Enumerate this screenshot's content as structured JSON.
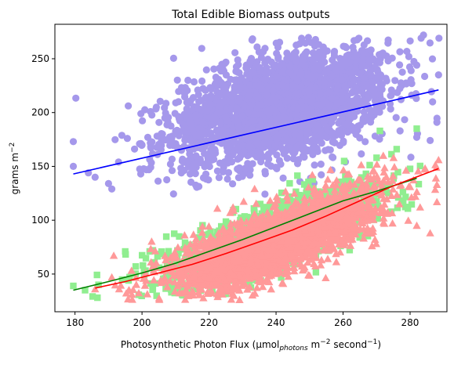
{
  "chart_data": {
    "type": "scatter",
    "title": "Total Edible Biomass outputs",
    "xlabel": {
      "main": "Photosynthetic Photon Flux (μmol",
      "sub": "photons",
      "mid": " m",
      "sup1": "−2",
      "end": " second",
      "sup2": "−1",
      "close": ")"
    },
    "ylabel": {
      "main": "grams m",
      "sup": "−2"
    },
    "xlim": [
      174,
      291
    ],
    "ylim": [
      15,
      282
    ],
    "xticks": [
      180,
      200,
      220,
      240,
      260,
      280
    ],
    "yticks": [
      50,
      100,
      150,
      200,
      250
    ],
    "grid": false,
    "legend": "none",
    "series": [
      {
        "marker": "circle",
        "color": "#a598eb",
        "cloud": {
          "x_range": [
            179,
            289
          ],
          "mean_x": 242,
          "sd_x": 16,
          "mean_y": 205,
          "sd_y": 24,
          "slope": 0.72,
          "n": 2600,
          "y_min": 105,
          "y_max": 272
        },
        "outliers": [
          [
            179.5,
            150
          ],
          [
            179.5,
            173
          ],
          [
            184,
            144
          ],
          [
            186,
            140
          ],
          [
            190,
            134
          ],
          [
            193,
            154
          ],
          [
            191,
            129
          ],
          [
            288.5,
            235
          ],
          [
            288,
            191
          ],
          [
            286,
            174
          ],
          [
            284,
            272
          ],
          [
            282,
            244
          ],
          [
            282,
            177
          ],
          [
            277,
            183
          ]
        ],
        "fit": {
          "color": "#0000ff",
          "points": [
            [
              179.5,
              143
            ],
            [
              288.5,
              221
            ]
          ]
        }
      },
      {
        "marker": "square",
        "color": "#90ee90",
        "cloud": {
          "x_range": [
            179,
            283
          ],
          "mean_x": 238,
          "sd_x": 15,
          "mean_y_formula": "quadratic",
          "sd_y": 14,
          "n": 1800,
          "y_min": 27,
          "y_max": 185
        },
        "outliers": [
          [
            179.5,
            39
          ],
          [
            183,
            35
          ],
          [
            187,
            40
          ],
          [
            195,
            71
          ],
          [
            270,
            158
          ],
          [
            276,
            166
          ],
          [
            282,
            185
          ],
          [
            271,
            183
          ]
        ],
        "fit": {
          "color": "#008000",
          "points": [
            [
              179.5,
              35
            ],
            [
              190,
              43
            ],
            [
              200,
              51
            ],
            [
              210,
              60
            ],
            [
              220,
              71
            ],
            [
              230,
              82
            ],
            [
              240,
              94
            ],
            [
              250,
              106
            ],
            [
              260,
              118
            ],
            [
              270,
              127
            ],
            [
              282,
              139
            ]
          ]
        }
      },
      {
        "marker": "triangle",
        "color": "#ff9999",
        "cloud": {
          "x_range": [
            186,
            289
          ],
          "mean_x": 240,
          "sd_x": 15,
          "mean_y_formula": "quadratic",
          "sd_y": 15,
          "n": 2600,
          "y_min": 25,
          "y_max": 160
        },
        "outliers": [
          [
            186,
            36
          ],
          [
            191,
            47
          ],
          [
            197,
            31
          ],
          [
            288.5,
            156
          ],
          [
            288,
            133
          ],
          [
            288,
            117
          ],
          [
            286,
            88
          ],
          [
            283,
            112
          ],
          [
            282,
            95
          ],
          [
            280,
            131
          ],
          [
            272,
            160
          ]
        ],
        "fit": {
          "color": "#ff0000",
          "points": [
            [
              186,
              37
            ],
            [
              195,
              43
            ],
            [
              205,
              51
            ],
            [
              215,
              59
            ],
            [
              225,
              69
            ],
            [
              235,
              80
            ],
            [
              245,
              91
            ],
            [
              255,
              104
            ],
            [
              265,
              118
            ],
            [
              275,
              132
            ],
            [
              288.5,
              148
            ]
          ]
        }
      }
    ]
  }
}
